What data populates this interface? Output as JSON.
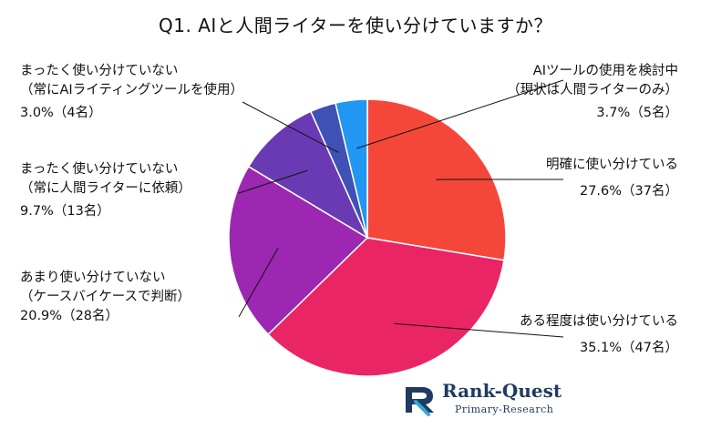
{
  "chart_data": {
    "type": "pie",
    "title": "Q1. AIと人間ライターを使い分けていますか？",
    "start_angle_deg": 0,
    "direction": "clockwise",
    "slices": [
      {
        "label_lines": [
          "明確に使い分けている"
        ],
        "value_text": "27.6%（37名）",
        "percent": 27.6,
        "count": 37,
        "color": "#f4473a"
      },
      {
        "label_lines": [
          "ある程度は使い分けている"
        ],
        "value_text": "35.1%（47名）",
        "percent": 35.1,
        "count": 47,
        "color": "#e92565"
      },
      {
        "label_lines": [
          "あまり使い分けていない",
          "（ケースバイケースで判断）"
        ],
        "value_text": "20.9%（28名）",
        "percent": 20.9,
        "count": 28,
        "color": "#9c27b0"
      },
      {
        "label_lines": [
          "まったく使い分けていない",
          "（常に人間ライターに依頼）"
        ],
        "value_text": "9.7%（13名）",
        "percent": 9.7,
        "count": 13,
        "color": "#6a3ab4"
      },
      {
        "label_lines": [
          "まったく使い分けていない",
          "（常にAIライティングツールを使用）"
        ],
        "value_text": "3.0%（4名）",
        "percent": 3.0,
        "count": 4,
        "color": "#3f51b5"
      },
      {
        "label_lines": [
          "AIツールの使用を検討中",
          "（現状は人間ライターのみ）"
        ],
        "value_text": "3.7%（5名）",
        "percent": 3.7,
        "count": 5,
        "color": "#2196f3"
      }
    ]
  },
  "brand": {
    "name": "Rank-Quest",
    "tagline": "Primary-Research"
  }
}
